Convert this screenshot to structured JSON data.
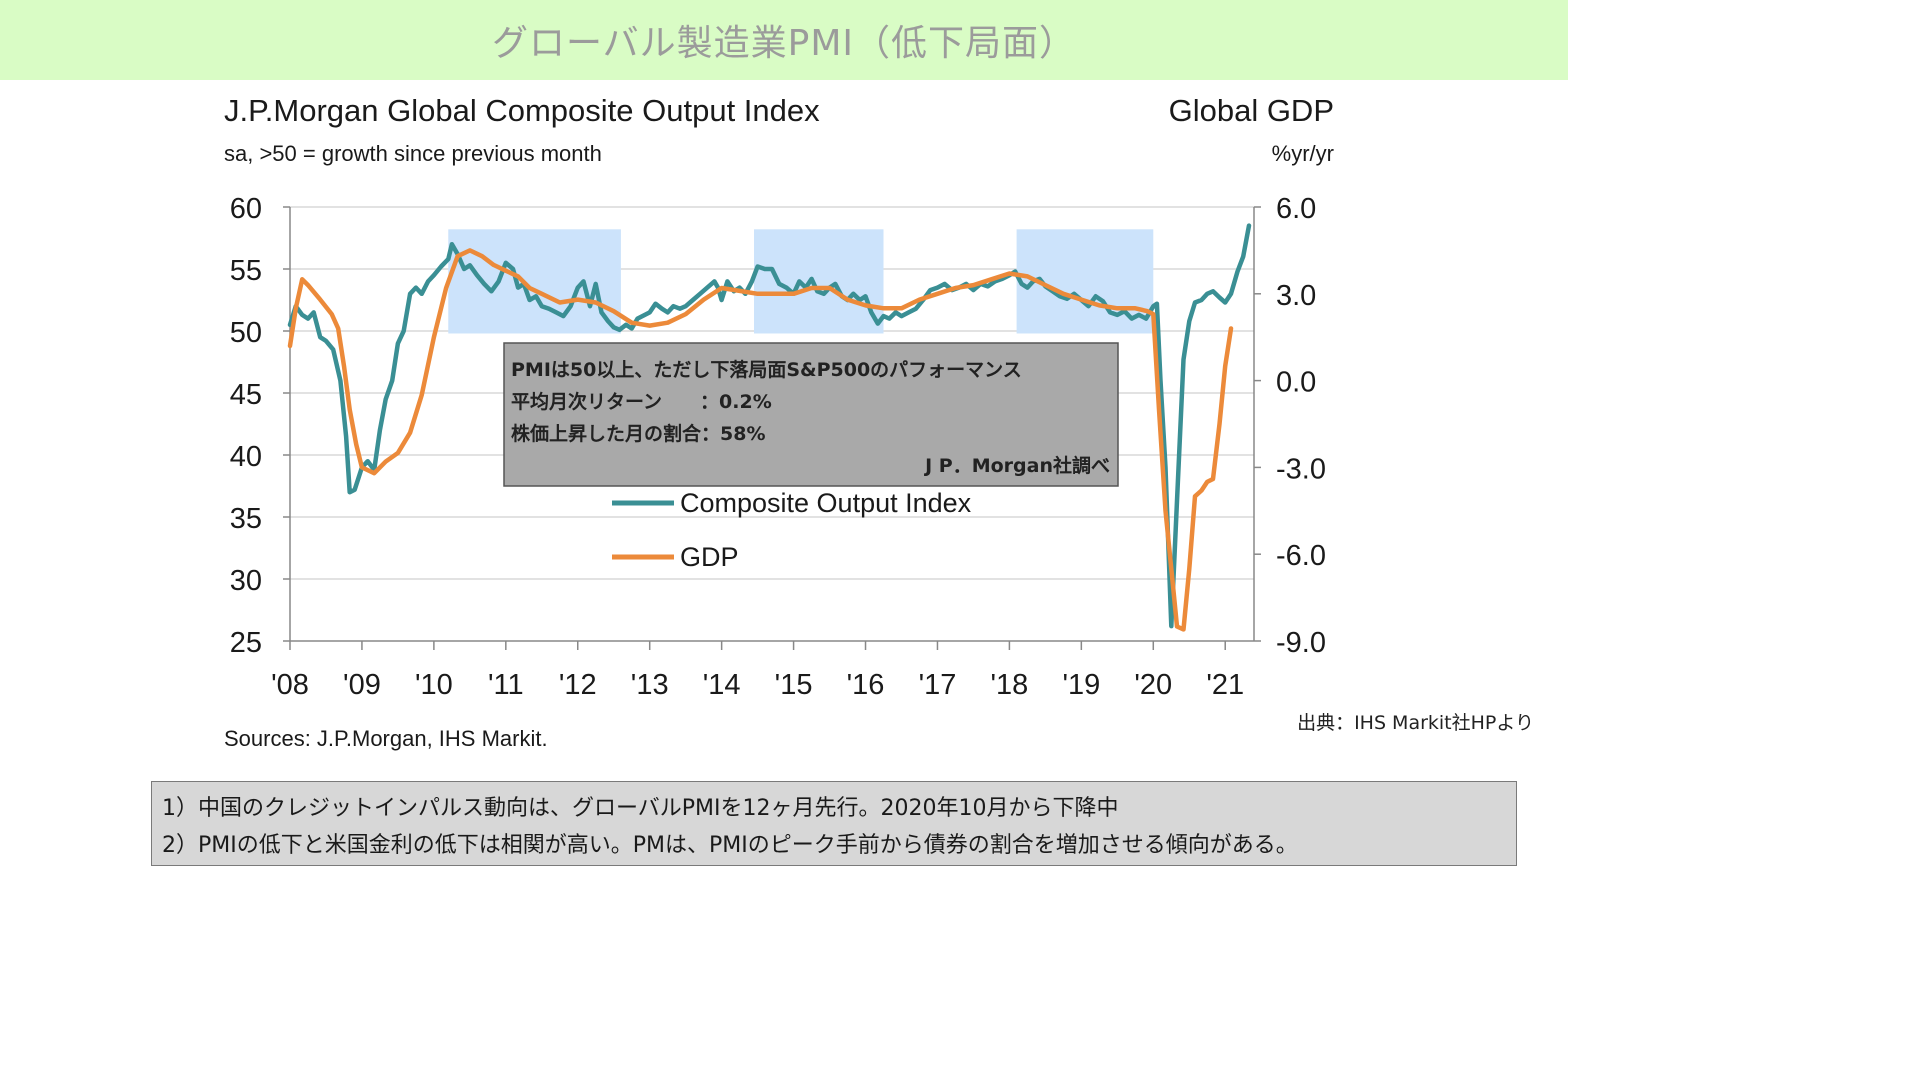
{
  "banner": {
    "title": "グローバル製造業PMI（低下局面）"
  },
  "chart_data": {
    "type": "line",
    "title": "J.P.Morgan Global Composite Output Index",
    "subtitle": "sa, >50 = growth since previous month",
    "right_title": "Global GDP",
    "right_unit": "%yr/yr",
    "source": "Sources: J.P.Morgan, IHS Markit.",
    "x_ticks": [
      "'08",
      "'09",
      "'10",
      "'11",
      "'12",
      "'13",
      "'14",
      "'15",
      "'16",
      "'17",
      "'18",
      "'19",
      "'20",
      "'21"
    ],
    "x_range": [
      2008,
      2021.4
    ],
    "y_left_range": [
      25,
      60
    ],
    "y_left_ticks": [
      "60",
      "55",
      "50",
      "45",
      "40",
      "35",
      "30",
      "25"
    ],
    "y_right_range": [
      -9,
      6
    ],
    "y_right_ticks": [
      "6.0",
      "3.0",
      "0.0",
      "-3.0",
      "-6.0",
      "-9.0"
    ],
    "grid": true,
    "legend_position": "center",
    "shaded_periods": [
      {
        "start": 2010.2,
        "end": 2012.6,
        "ymin": 49.8,
        "ymax": 58.2
      },
      {
        "start": 2014.45,
        "end": 2016.25,
        "ymin": 49.8,
        "ymax": 58.2
      },
      {
        "start": 2018.1,
        "end": 2020.0,
        "ymin": 49.8,
        "ymax": 58.2
      }
    ],
    "series": [
      {
        "name": "Composite Output Index",
        "axis": "left",
        "color": "#3a8f94",
        "points": [
          [
            2008.0,
            50.5
          ],
          [
            2008.08,
            52.0
          ],
          [
            2008.17,
            51.3
          ],
          [
            2008.25,
            51.0
          ],
          [
            2008.33,
            51.5
          ],
          [
            2008.42,
            49.5
          ],
          [
            2008.5,
            49.2
          ],
          [
            2008.6,
            48.5
          ],
          [
            2008.7,
            46.0
          ],
          [
            2008.78,
            41.5
          ],
          [
            2008.83,
            37.0
          ],
          [
            2008.9,
            37.2
          ],
          [
            2009.0,
            39.0
          ],
          [
            2009.08,
            39.5
          ],
          [
            2009.17,
            38.8
          ],
          [
            2009.25,
            42.0
          ],
          [
            2009.33,
            44.5
          ],
          [
            2009.42,
            46.0
          ],
          [
            2009.5,
            49.0
          ],
          [
            2009.58,
            50.0
          ],
          [
            2009.67,
            53.0
          ],
          [
            2009.75,
            53.5
          ],
          [
            2009.83,
            53.0
          ],
          [
            2009.92,
            54.0
          ],
          [
            2010.0,
            54.5
          ],
          [
            2010.1,
            55.2
          ],
          [
            2010.2,
            55.8
          ],
          [
            2010.25,
            57.0
          ],
          [
            2010.33,
            56.2
          ],
          [
            2010.42,
            55.0
          ],
          [
            2010.5,
            55.3
          ],
          [
            2010.6,
            54.5
          ],
          [
            2010.7,
            53.8
          ],
          [
            2010.8,
            53.2
          ],
          [
            2010.9,
            54.0
          ],
          [
            2011.0,
            55.5
          ],
          [
            2011.1,
            55.0
          ],
          [
            2011.17,
            53.5
          ],
          [
            2011.25,
            53.8
          ],
          [
            2011.33,
            52.5
          ],
          [
            2011.42,
            52.8
          ],
          [
            2011.5,
            52.0
          ],
          [
            2011.6,
            51.8
          ],
          [
            2011.7,
            51.5
          ],
          [
            2011.8,
            51.2
          ],
          [
            2011.9,
            52.0
          ],
          [
            2012.0,
            53.5
          ],
          [
            2012.08,
            54.0
          ],
          [
            2012.17,
            52.0
          ],
          [
            2012.25,
            53.8
          ],
          [
            2012.33,
            51.5
          ],
          [
            2012.42,
            50.8
          ],
          [
            2012.5,
            50.3
          ],
          [
            2012.58,
            50.1
          ],
          [
            2012.67,
            50.5
          ],
          [
            2012.75,
            50.2
          ],
          [
            2012.83,
            51.0
          ],
          [
            2013.0,
            51.5
          ],
          [
            2013.08,
            52.2
          ],
          [
            2013.17,
            51.8
          ],
          [
            2013.25,
            51.5
          ],
          [
            2013.33,
            52.0
          ],
          [
            2013.42,
            51.8
          ],
          [
            2013.5,
            52.0
          ],
          [
            2013.6,
            52.5
          ],
          [
            2013.7,
            53.0
          ],
          [
            2013.8,
            53.5
          ],
          [
            2013.9,
            54.0
          ],
          [
            2013.95,
            53.5
          ],
          [
            2014.0,
            52.5
          ],
          [
            2014.08,
            54.0
          ],
          [
            2014.17,
            53.2
          ],
          [
            2014.25,
            53.5
          ],
          [
            2014.33,
            53.0
          ],
          [
            2014.42,
            54.0
          ],
          [
            2014.5,
            55.2
          ],
          [
            2014.6,
            55.0
          ],
          [
            2014.7,
            55.0
          ],
          [
            2014.8,
            53.8
          ],
          [
            2014.9,
            53.5
          ],
          [
            2015.0,
            53.0
          ],
          [
            2015.08,
            54.0
          ],
          [
            2015.17,
            53.5
          ],
          [
            2015.25,
            54.2
          ],
          [
            2015.33,
            53.2
          ],
          [
            2015.42,
            53.0
          ],
          [
            2015.5,
            53.5
          ],
          [
            2015.58,
            53.8
          ],
          [
            2015.67,
            52.8
          ],
          [
            2015.75,
            52.5
          ],
          [
            2015.83,
            53.0
          ],
          [
            2015.92,
            52.5
          ],
          [
            2016.0,
            52.8
          ],
          [
            2016.08,
            51.5
          ],
          [
            2016.17,
            50.6
          ],
          [
            2016.25,
            51.2
          ],
          [
            2016.33,
            51.0
          ],
          [
            2016.42,
            51.5
          ],
          [
            2016.5,
            51.2
          ],
          [
            2016.6,
            51.5
          ],
          [
            2016.7,
            51.8
          ],
          [
            2016.8,
            52.5
          ],
          [
            2016.9,
            53.3
          ],
          [
            2017.0,
            53.5
          ],
          [
            2017.1,
            53.8
          ],
          [
            2017.2,
            53.3
          ],
          [
            2017.3,
            53.5
          ],
          [
            2017.4,
            53.8
          ],
          [
            2017.5,
            53.3
          ],
          [
            2017.6,
            53.8
          ],
          [
            2017.7,
            53.6
          ],
          [
            2017.8,
            54.0
          ],
          [
            2017.9,
            54.2
          ],
          [
            2018.0,
            54.5
          ],
          [
            2018.08,
            54.8
          ],
          [
            2018.17,
            53.8
          ],
          [
            2018.25,
            53.5
          ],
          [
            2018.33,
            54.0
          ],
          [
            2018.42,
            54.2
          ],
          [
            2018.5,
            53.6
          ],
          [
            2018.6,
            53.2
          ],
          [
            2018.7,
            52.8
          ],
          [
            2018.8,
            52.6
          ],
          [
            2018.9,
            53.0
          ],
          [
            2019.0,
            52.5
          ],
          [
            2019.1,
            52.0
          ],
          [
            2019.2,
            52.8
          ],
          [
            2019.3,
            52.4
          ],
          [
            2019.4,
            51.5
          ],
          [
            2019.5,
            51.3
          ],
          [
            2019.6,
            51.6
          ],
          [
            2019.7,
            51.0
          ],
          [
            2019.8,
            51.3
          ],
          [
            2019.9,
            51.0
          ],
          [
            2020.0,
            52.0
          ],
          [
            2020.05,
            52.2
          ],
          [
            2020.1,
            46.0
          ],
          [
            2020.17,
            39.0
          ],
          [
            2020.25,
            26.2
          ],
          [
            2020.33,
            36.3
          ],
          [
            2020.42,
            47.7
          ],
          [
            2020.5,
            50.8
          ],
          [
            2020.58,
            52.3
          ],
          [
            2020.67,
            52.5
          ],
          [
            2020.75,
            53.0
          ],
          [
            2020.83,
            53.2
          ],
          [
            2020.92,
            52.7
          ],
          [
            2021.0,
            52.3
          ],
          [
            2021.08,
            53.0
          ],
          [
            2021.17,
            54.8
          ],
          [
            2021.25,
            56.0
          ],
          [
            2021.33,
            58.5
          ]
        ]
      },
      {
        "name": "GDP",
        "axis": "right",
        "color": "#ec8a3a",
        "points": [
          [
            2008.0,
            1.2
          ],
          [
            2008.08,
            2.5
          ],
          [
            2008.17,
            3.5
          ],
          [
            2008.25,
            3.3
          ],
          [
            2008.42,
            2.8
          ],
          [
            2008.58,
            2.3
          ],
          [
            2008.67,
            1.8
          ],
          [
            2008.75,
            0.5
          ],
          [
            2008.83,
            -1.0
          ],
          [
            2008.92,
            -2.2
          ],
          [
            2009.0,
            -3.0
          ],
          [
            2009.17,
            -3.2
          ],
          [
            2009.33,
            -2.8
          ],
          [
            2009.5,
            -2.5
          ],
          [
            2009.67,
            -1.8
          ],
          [
            2009.83,
            -0.5
          ],
          [
            2010.0,
            1.5
          ],
          [
            2010.17,
            3.2
          ],
          [
            2010.33,
            4.3
          ],
          [
            2010.5,
            4.5
          ],
          [
            2010.67,
            4.3
          ],
          [
            2010.83,
            4.0
          ],
          [
            2011.0,
            3.8
          ],
          [
            2011.17,
            3.6
          ],
          [
            2011.33,
            3.2
          ],
          [
            2011.5,
            3.0
          ],
          [
            2011.75,
            2.7
          ],
          [
            2012.0,
            2.8
          ],
          [
            2012.25,
            2.7
          ],
          [
            2012.5,
            2.4
          ],
          [
            2012.75,
            2.0
          ],
          [
            2013.0,
            1.9
          ],
          [
            2013.25,
            2.0
          ],
          [
            2013.5,
            2.3
          ],
          [
            2013.75,
            2.8
          ],
          [
            2014.0,
            3.2
          ],
          [
            2014.25,
            3.1
          ],
          [
            2014.5,
            3.0
          ],
          [
            2014.75,
            3.0
          ],
          [
            2015.0,
            3.0
          ],
          [
            2015.25,
            3.2
          ],
          [
            2015.5,
            3.2
          ],
          [
            2015.75,
            2.8
          ],
          [
            2016.0,
            2.6
          ],
          [
            2016.25,
            2.5
          ],
          [
            2016.5,
            2.5
          ],
          [
            2016.75,
            2.8
          ],
          [
            2017.0,
            3.0
          ],
          [
            2017.25,
            3.2
          ],
          [
            2017.5,
            3.3
          ],
          [
            2017.75,
            3.5
          ],
          [
            2018.0,
            3.7
          ],
          [
            2018.25,
            3.6
          ],
          [
            2018.5,
            3.3
          ],
          [
            2018.75,
            3.0
          ],
          [
            2019.0,
            2.8
          ],
          [
            2019.25,
            2.6
          ],
          [
            2019.5,
            2.5
          ],
          [
            2019.75,
            2.5
          ],
          [
            2019.92,
            2.4
          ],
          [
            2020.0,
            2.3
          ],
          [
            2020.08,
            -1.0
          ],
          [
            2020.17,
            -4.5
          ],
          [
            2020.25,
            -6.5
          ],
          [
            2020.33,
            -8.5
          ],
          [
            2020.42,
            -8.6
          ],
          [
            2020.5,
            -6.5
          ],
          [
            2020.58,
            -4.0
          ],
          [
            2020.67,
            -3.8
          ],
          [
            2020.75,
            -3.5
          ],
          [
            2020.83,
            -3.4
          ],
          [
            2020.92,
            -1.5
          ],
          [
            2021.0,
            0.5
          ],
          [
            2021.08,
            1.8
          ]
        ]
      }
    ]
  },
  "annotation": {
    "line1": "PMIは50以上、ただし下落局面S&P500のパフォーマンス",
    "line2": "平均月次リターン　　：0.2%",
    "line3": "株価上昇した月の割合：58%",
    "credit": "J P．Morgan社調べ"
  },
  "image_credit": "出典：IHS Markit社HPより",
  "notes": {
    "line1": "1）中国のクレジットインパルス動向は、グローバルPMIを12ヶ月先行。2020年10月から下降中",
    "line2": "2）PMIの低下と米国金利の低下は相関が高い。PMは、PMIのピーク手前から債券の割合を増加させる傾向がある。"
  },
  "colors": {
    "banner_bg": "#d9fcc5",
    "shade": "#cce3fb",
    "pmi_line": "#3a8f94",
    "gdp_line": "#ec8a3a",
    "annotation_bg": "#a9a9a9"
  }
}
